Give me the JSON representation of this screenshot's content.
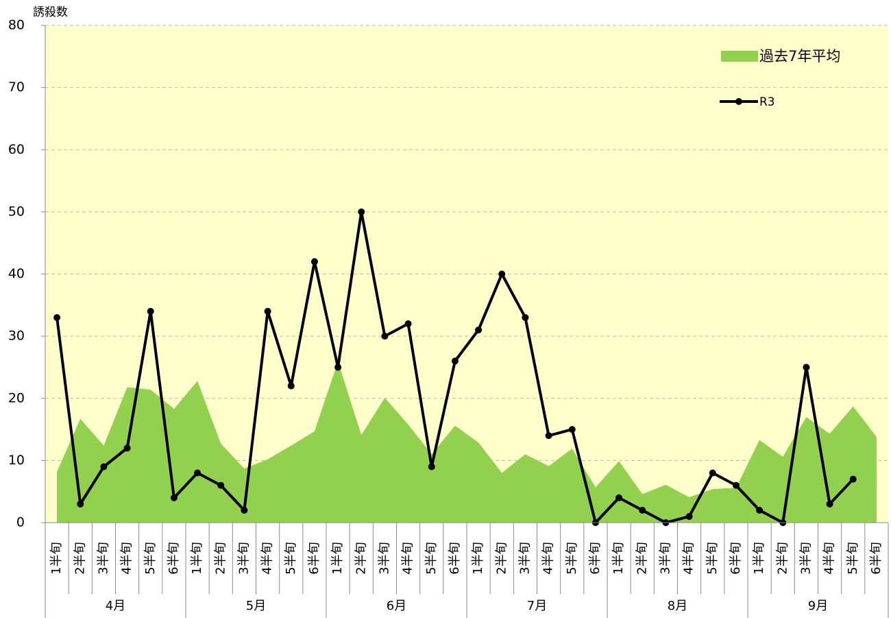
{
  "chart_data": {
    "type": "line",
    "y_axis_title": "誘殺数",
    "categories": [
      "1半旬",
      "2半旬",
      "3半旬",
      "4半旬",
      "5半旬",
      "6半旬",
      "1半旬",
      "2半旬",
      "3半旬",
      "4半旬",
      "5半旬",
      "6半旬",
      "1半旬",
      "2半旬",
      "3半旬",
      "4半旬",
      "5半旬",
      "6半旬",
      "1半旬",
      "2半旬",
      "3半旬",
      "4半旬",
      "5半旬",
      "6半旬",
      "1半旬",
      "2半旬",
      "3半旬",
      "4半旬",
      "5半旬",
      "6半旬",
      "1半旬",
      "2半旬",
      "3半旬",
      "4半旬",
      "5半旬",
      "6半旬"
    ],
    "months": [
      "4月",
      "5月",
      "6月",
      "7月",
      "8月",
      "9月"
    ],
    "series": [
      {
        "name": "R3",
        "type": "line",
        "color": "#000000",
        "values": [
          33,
          3,
          9,
          12,
          34,
          4,
          8,
          6,
          2,
          34,
          22,
          42,
          25,
          50,
          30,
          32,
          9,
          26,
          31,
          40,
          33,
          14,
          15,
          0,
          4,
          2,
          0,
          1,
          8,
          6,
          2,
          0,
          25,
          3,
          7,
          null
        ]
      },
      {
        "name": "過去7年平均",
        "type": "area",
        "color": "#92d050",
        "values": [
          8.2,
          16.7,
          12.4,
          21.8,
          21.4,
          18.3,
          22.8,
          12.7,
          8.7,
          10.2,
          12.4,
          14.7,
          25.9,
          14.1,
          20.1,
          15.8,
          11.0,
          15.6,
          12.9,
          8.0,
          11.0,
          9.1,
          11.9,
          5.7,
          9.9,
          4.6,
          6.1,
          4.1,
          5.4,
          5.6,
          13.3,
          10.6,
          17.0,
          14.3,
          18.7,
          13.8
        ]
      }
    ],
    "ylim": [
      0,
      80
    ],
    "yticks": [
      0,
      10,
      20,
      30,
      40,
      50,
      60,
      70,
      80
    ],
    "grid": true,
    "plot_background": "#ffffcc"
  }
}
